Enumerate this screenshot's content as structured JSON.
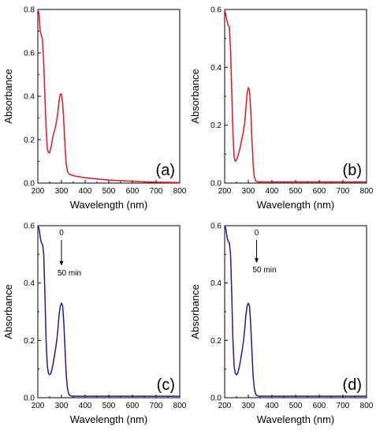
{
  "chart_data": [
    {
      "type": "line",
      "panel_label": "(a)",
      "xlabel": "Wavelength (nm)",
      "ylabel": "Absorbance",
      "xlim": [
        200,
        800
      ],
      "ylim": [
        0,
        0.8
      ],
      "x_ticks": [
        "200",
        "300",
        "400",
        "500",
        "600",
        "700",
        "800"
      ],
      "y_ticks": [
        "0.0",
        "0.2",
        "0.4",
        "0.6",
        "0.8"
      ],
      "y_tick_values": [
        0,
        0.2,
        0.4,
        0.6,
        0.8
      ],
      "grid": false,
      "series": [
        {
          "color": "#e8141c",
          "x": [
            200,
            205,
            210,
            215,
            220,
            225,
            230,
            235,
            240,
            245,
            250,
            255,
            260,
            265,
            270,
            275,
            280,
            285,
            290,
            295,
            300,
            305,
            310,
            315,
            320,
            325,
            330,
            335,
            340,
            345,
            350,
            360,
            380,
            400,
            450,
            500,
            550,
            600,
            650,
            700,
            750,
            800
          ],
          "y": [
            0.8,
            0.78,
            0.7,
            0.68,
            0.66,
            0.55,
            0.4,
            0.25,
            0.16,
            0.14,
            0.14,
            0.16,
            0.19,
            0.22,
            0.24,
            0.26,
            0.29,
            0.33,
            0.38,
            0.41,
            0.41,
            0.37,
            0.28,
            0.17,
            0.09,
            0.055,
            0.045,
            0.04,
            0.038,
            0.036,
            0.035,
            0.032,
            0.028,
            0.025,
            0.019,
            0.014,
            0.011,
            0.008,
            0.006,
            0.004,
            0.003,
            0.002
          ]
        }
      ]
    },
    {
      "type": "line",
      "panel_label": "(b)",
      "xlabel": "Wavelength (nm)",
      "ylabel": "Absorbance",
      "xlim": [
        200,
        800
      ],
      "ylim": [
        0,
        0.6
      ],
      "x_ticks": [
        "200",
        "300",
        "400",
        "500",
        "600",
        "700",
        "800"
      ],
      "y_ticks": [
        "0.0",
        "0.2",
        "0.4",
        "0.6"
      ],
      "y_tick_values": [
        0,
        0.2,
        0.4,
        0.6
      ],
      "grid": false,
      "series": [
        {
          "color": "#e8141c",
          "x": [
            200,
            205,
            210,
            215,
            220,
            225,
            230,
            235,
            240,
            245,
            250,
            255,
            260,
            265,
            270,
            275,
            280,
            285,
            290,
            295,
            300,
            305,
            310,
            315,
            320,
            325,
            330,
            335,
            340,
            360,
            400,
            500,
            600,
            700,
            800
          ],
          "y": [
            0.6,
            0.58,
            0.56,
            0.545,
            0.54,
            0.46,
            0.32,
            0.18,
            0.09,
            0.075,
            0.08,
            0.09,
            0.105,
            0.12,
            0.14,
            0.16,
            0.18,
            0.21,
            0.26,
            0.31,
            0.33,
            0.32,
            0.26,
            0.16,
            0.07,
            0.025,
            0.01,
            0.005,
            0.004,
            0.004,
            0.004,
            0.004,
            0.004,
            0.004,
            0.004
          ]
        }
      ]
    },
    {
      "type": "line",
      "panel_label": "(c)",
      "xlabel": "Wavelength (nm)",
      "ylabel": "Absorbance",
      "xlim": [
        200,
        800
      ],
      "ylim": [
        0,
        0.6
      ],
      "x_ticks": [
        "200",
        "300",
        "400",
        "500",
        "600",
        "700",
        "800"
      ],
      "y_ticks": [
        "0.0",
        "0.2",
        "0.4",
        "0.6"
      ],
      "y_tick_values": [
        0,
        0.2,
        0.4,
        0.6
      ],
      "grid": false,
      "annotation_top": "0",
      "annotation_bottom": "50 min",
      "arrow_x": 300,
      "arrow_y_start": 0.55,
      "arrow_y_end": 0.46,
      "series": [
        {
          "color": "#1a1a9e",
          "x": [
            200,
            205,
            210,
            215,
            220,
            225,
            230,
            235,
            240,
            245,
            250,
            255,
            260,
            265,
            270,
            275,
            280,
            285,
            290,
            295,
            300,
            305,
            310,
            315,
            320,
            325,
            330,
            335,
            340,
            360,
            400,
            500,
            600,
            700,
            800
          ],
          "y": [
            0.6,
            0.59,
            0.56,
            0.54,
            0.535,
            0.5,
            0.36,
            0.2,
            0.11,
            0.085,
            0.08,
            0.085,
            0.1,
            0.12,
            0.145,
            0.17,
            0.2,
            0.24,
            0.29,
            0.32,
            0.33,
            0.32,
            0.26,
            0.17,
            0.08,
            0.035,
            0.015,
            0.008,
            0.006,
            0.005,
            0.005,
            0.005,
            0.005,
            0.005,
            0.005
          ]
        }
      ]
    },
    {
      "type": "line",
      "panel_label": "(d)",
      "xlabel": "Wavelength (nm)",
      "ylabel": "Absorbance",
      "xlim": [
        200,
        800
      ],
      "ylim": [
        0,
        0.6
      ],
      "x_ticks": [
        "200",
        "300",
        "400",
        "500",
        "600",
        "700",
        "800"
      ],
      "y_ticks": [
        "0.0",
        "0.2",
        "0.4",
        "0.6"
      ],
      "y_tick_values": [
        0,
        0.2,
        0.4,
        0.6
      ],
      "grid": false,
      "annotation_top": "0",
      "annotation_bottom": "50 min",
      "arrow_x": 335,
      "arrow_y_start": 0.55,
      "arrow_y_end": 0.47,
      "series": [
        {
          "color": "#1a1a9e",
          "x": [
            200,
            205,
            210,
            215,
            220,
            225,
            230,
            235,
            240,
            245,
            250,
            255,
            260,
            265,
            270,
            275,
            280,
            285,
            290,
            295,
            300,
            305,
            310,
            315,
            320,
            325,
            330,
            335,
            340,
            360,
            400,
            500,
            600,
            700,
            800
          ],
          "y": [
            0.6,
            0.59,
            0.56,
            0.545,
            0.54,
            0.5,
            0.36,
            0.2,
            0.11,
            0.085,
            0.08,
            0.085,
            0.1,
            0.12,
            0.145,
            0.17,
            0.2,
            0.24,
            0.29,
            0.32,
            0.33,
            0.32,
            0.26,
            0.17,
            0.08,
            0.035,
            0.015,
            0.008,
            0.006,
            0.005,
            0.005,
            0.005,
            0.005,
            0.005,
            0.005
          ]
        }
      ]
    }
  ]
}
